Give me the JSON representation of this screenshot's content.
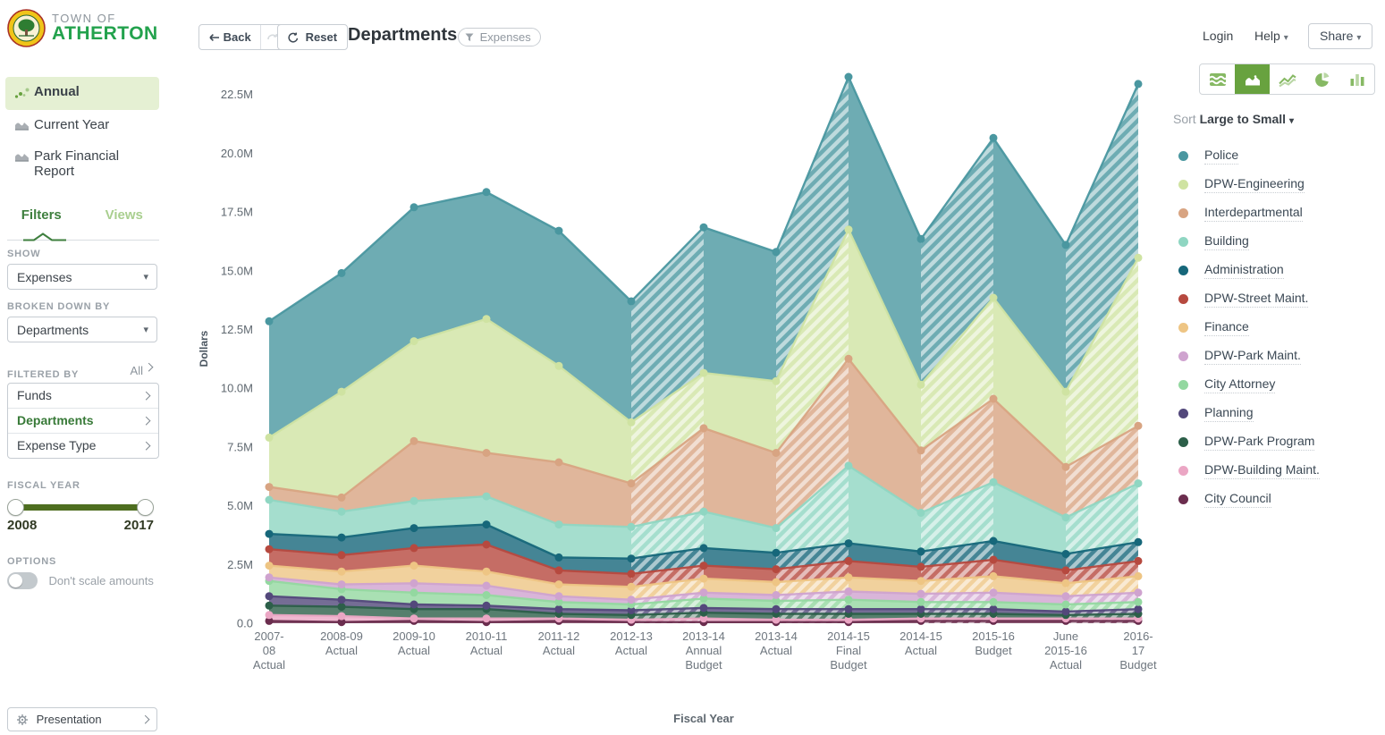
{
  "brand": {
    "line1": "TOWN OF",
    "line2": "ATHERTON"
  },
  "sidebar": {
    "nav": [
      {
        "label": "Annual",
        "icon": "scatter-dots-icon",
        "active": true
      },
      {
        "label": "Current Year",
        "icon": "area-chart-icon",
        "active": false
      },
      {
        "label": "Park Financial Report",
        "icon": "area-chart-icon",
        "active": false
      }
    ],
    "tabs": [
      {
        "label": "Filters",
        "active": true
      },
      {
        "label": "Views",
        "active": false
      }
    ],
    "show": {
      "label": "SHOW",
      "value": "Expenses"
    },
    "broken_down_by": {
      "label": "BROKEN DOWN BY",
      "value": "Departments"
    },
    "filtered_by": {
      "label": "FILTERED BY",
      "all_label": "All",
      "items": [
        {
          "label": "Funds",
          "active": false
        },
        {
          "label": "Departments",
          "active": true
        },
        {
          "label": "Expense Type",
          "active": false
        }
      ]
    },
    "fiscal_year": {
      "label": "FISCAL YEAR",
      "min": "2008",
      "max": "2017"
    },
    "options": {
      "label": "OPTIONS",
      "toggle_label": "Don't scale amounts",
      "toggle_on": false
    },
    "presentation": {
      "label": "Presentation"
    }
  },
  "toolbar": {
    "back": "Back",
    "reset": "Reset",
    "title": "Departments",
    "filter_chip": "Expenses"
  },
  "header": {
    "login": "Login",
    "help": "Help",
    "share": "Share"
  },
  "view_switcher": {
    "options": [
      "stream-icon",
      "area-icon",
      "line-icon",
      "pie-icon",
      "bar-icon"
    ],
    "selected_index": 1
  },
  "legend": {
    "sort_label": "Sort",
    "sort_value": "Large to Small"
  },
  "icons": {
    "caret": "▾",
    "back_arrow": "arrow-left",
    "forward": "arrow-redo-disabled",
    "reset": "arrow-counterclockwise",
    "chip": "funnel-icon",
    "gear": "gear-icon"
  },
  "colors": {
    "accent_green": "#68a23f",
    "brand_green": "#23a24d",
    "tab_green": "#3e7f3e",
    "nav_active_bg": "#e5f0d3",
    "slider_green": "#4e6e20",
    "hatch_white": "#ffffff"
  },
  "chart_data": {
    "type": "area",
    "stacked": true,
    "title": "Departments",
    "xlabel": "Fiscal Year",
    "ylabel": "Dollars",
    "ylim": [
      0,
      23.5
    ],
    "grid": false,
    "legend_position": "right",
    "yticks": [
      "0.0",
      "2.5M",
      "5.0M",
      "7.5M",
      "10.0M",
      "12.5M",
      "15.0M",
      "17.5M",
      "20.0M",
      "22.5M"
    ],
    "ytick_values": [
      0,
      2.5,
      5,
      7.5,
      10,
      12.5,
      15,
      17.5,
      20,
      22.5
    ],
    "categories": [
      "2007-08 Actual",
      "2008-09 Actual",
      "2009-10 Actual",
      "2010-11 Actual",
      "2011-12 Actual",
      "2012-13 Actual",
      "2013-14 Annual Budget",
      "2013-14 Actual",
      "2014-15 Final Budget",
      "2014-15 Actual",
      "2015-16 Budget",
      "June 2015-16 Actual",
      "2016-17 Budget"
    ],
    "category_lines": [
      [
        "2007-",
        "08",
        "Actual"
      ],
      [
        "2008-09",
        "Actual"
      ],
      [
        "2009-10",
        "Actual"
      ],
      [
        "2010-11",
        "Actual"
      ],
      [
        "2011-12",
        "Actual"
      ],
      [
        "2012-13",
        "Actual"
      ],
      [
        "2013-14",
        "Annual",
        "Budget"
      ],
      [
        "2013-14",
        "Actual"
      ],
      [
        "2014-15",
        "Final",
        "Budget"
      ],
      [
        "2014-15",
        "Actual"
      ],
      [
        "2015-16",
        "Budget"
      ],
      [
        "June",
        "2015-16",
        "Actual"
      ],
      [
        "2016-",
        "17",
        "Budget"
      ]
    ],
    "hatched_segment_starts": [
      5,
      7,
      9,
      11
    ],
    "units": "millions of dollars",
    "series": [
      {
        "name": "Police",
        "color": "#4a97a0",
        "values": [
          4.95,
          5.05,
          5.7,
          5.4,
          5.75,
          5.15,
          6.2,
          5.5,
          6.5,
          6.2,
          6.8,
          6.25,
          7.4
        ]
      },
      {
        "name": "DPW-Engineering",
        "color": "#cfe3a2",
        "values": [
          2.1,
          4.5,
          4.25,
          5.7,
          4.1,
          2.6,
          2.35,
          3.05,
          5.5,
          2.8,
          4.3,
          3.2,
          7.15
        ]
      },
      {
        "name": "Interdepartmental",
        "color": "#d8a482",
        "values": [
          0.55,
          0.6,
          2.55,
          1.85,
          2.65,
          1.85,
          3.55,
          3.2,
          4.55,
          2.65,
          3.55,
          2.15,
          2.45
        ]
      },
      {
        "name": "Building",
        "color": "#8fd6c2",
        "values": [
          1.45,
          1.1,
          1.15,
          1.2,
          1.4,
          1.35,
          1.55,
          1.05,
          3.3,
          1.65,
          2.5,
          1.55,
          2.5
        ]
      },
      {
        "name": "Administration",
        "color": "#16677a",
        "values": [
          0.65,
          0.75,
          0.85,
          0.85,
          0.55,
          0.65,
          0.75,
          0.7,
          0.75,
          0.65,
          0.8,
          0.7,
          0.8
        ]
      },
      {
        "name": "DPW-Street Maint.",
        "color": "#b6493f",
        "values": [
          0.7,
          0.7,
          0.75,
          1.15,
          0.6,
          0.55,
          0.55,
          0.55,
          0.7,
          0.6,
          0.7,
          0.55,
          0.65
        ]
      },
      {
        "name": "Finance",
        "color": "#eec584",
        "values": [
          0.5,
          0.55,
          0.75,
          0.6,
          0.5,
          0.55,
          0.6,
          0.55,
          0.6,
          0.55,
          0.7,
          0.55,
          0.7
        ]
      },
      {
        "name": "DPW-Park Maint.",
        "color": "#cfa3cf",
        "values": [
          0.15,
          0.2,
          0.4,
          0.4,
          0.25,
          0.2,
          0.25,
          0.25,
          0.35,
          0.35,
          0.4,
          0.35,
          0.4
        ]
      },
      {
        "name": "City Attorney",
        "color": "#93d8a0",
        "values": [
          0.65,
          0.45,
          0.5,
          0.45,
          0.3,
          0.25,
          0.4,
          0.35,
          0.4,
          0.3,
          0.3,
          0.3,
          0.3
        ]
      },
      {
        "name": "Planning",
        "color": "#53487b",
        "values": [
          0.4,
          0.3,
          0.2,
          0.15,
          0.2,
          0.2,
          0.2,
          0.2,
          0.2,
          0.2,
          0.2,
          0.15,
          0.2
        ]
      },
      {
        "name": "DPW-Park Program",
        "color": "#2c5f49",
        "values": [
          0.4,
          0.4,
          0.4,
          0.4,
          0.2,
          0.2,
          0.25,
          0.25,
          0.25,
          0.2,
          0.2,
          0.15,
          0.2
        ]
      },
      {
        "name": "DPW-Building Maint.",
        "color": "#eba6c4",
        "values": [
          0.25,
          0.25,
          0.1,
          0.15,
          0.1,
          0.1,
          0.15,
          0.1,
          0.1,
          0.1,
          0.1,
          0.1,
          0.1
        ]
      },
      {
        "name": "City Council",
        "color": "#6b2d4e",
        "values": [
          0.1,
          0.05,
          0.1,
          0.05,
          0.1,
          0.05,
          0.05,
          0.05,
          0.05,
          0.1,
          0.1,
          0.1,
          0.1
        ]
      }
    ]
  }
}
